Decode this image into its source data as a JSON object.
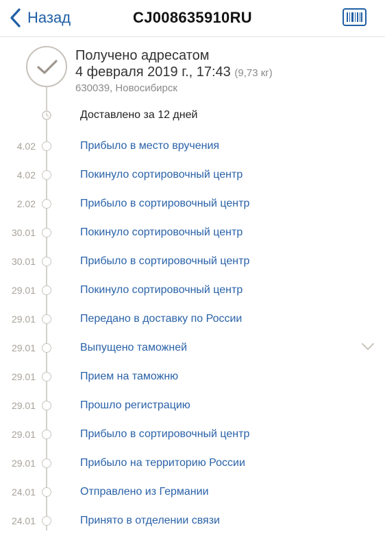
{
  "header": {
    "back_label": "Назад",
    "title": "CJ008635910RU"
  },
  "status": {
    "title": "Получено адресатом",
    "date": "4 февраля 2019 г., 17:43",
    "weight": "(9,73 кг)",
    "address": "630039, Новосибирск"
  },
  "delivered_text": "Доставлено за 12 дней",
  "events": [
    {
      "date": "4.02",
      "label": "Прибыло в место вручения"
    },
    {
      "date": "4.02",
      "label": "Покинуло сортировочный центр"
    },
    {
      "date": "2.02",
      "label": "Прибыло в сортировочный центр"
    },
    {
      "date": "30.01",
      "label": "Покинуло сортировочный центр"
    },
    {
      "date": "30.01",
      "label": "Прибыло в сортировочный центр"
    },
    {
      "date": "29.01",
      "label": "Покинуло сортировочный центр"
    },
    {
      "date": "29.01",
      "label": "Передано в доставку по России"
    },
    {
      "date": "29.01",
      "label": "Выпущено таможней"
    },
    {
      "date": "29.01",
      "label": "Прием на таможню"
    },
    {
      "date": "29.01",
      "label": "Прошло регистрацию"
    },
    {
      "date": "29.01",
      "label": "Прибыло в сортировочный центр"
    },
    {
      "date": "29.01",
      "label": "Прибыло на территорию России"
    },
    {
      "date": "24.01",
      "label": "Отправлено из Германии"
    },
    {
      "date": "24.01",
      "label": "Принято в отделении связи"
    }
  ],
  "icons": {
    "back": "chevron-left-icon",
    "barcode": "barcode-icon",
    "status": "checkmark-icon",
    "duration": "clock-icon",
    "expand": "chevron-down-icon"
  },
  "colors": {
    "accent": "#1f5fa5",
    "link": "#2a62a8",
    "timeline": "#d3d0cb",
    "muted": "#8a8a8a"
  }
}
